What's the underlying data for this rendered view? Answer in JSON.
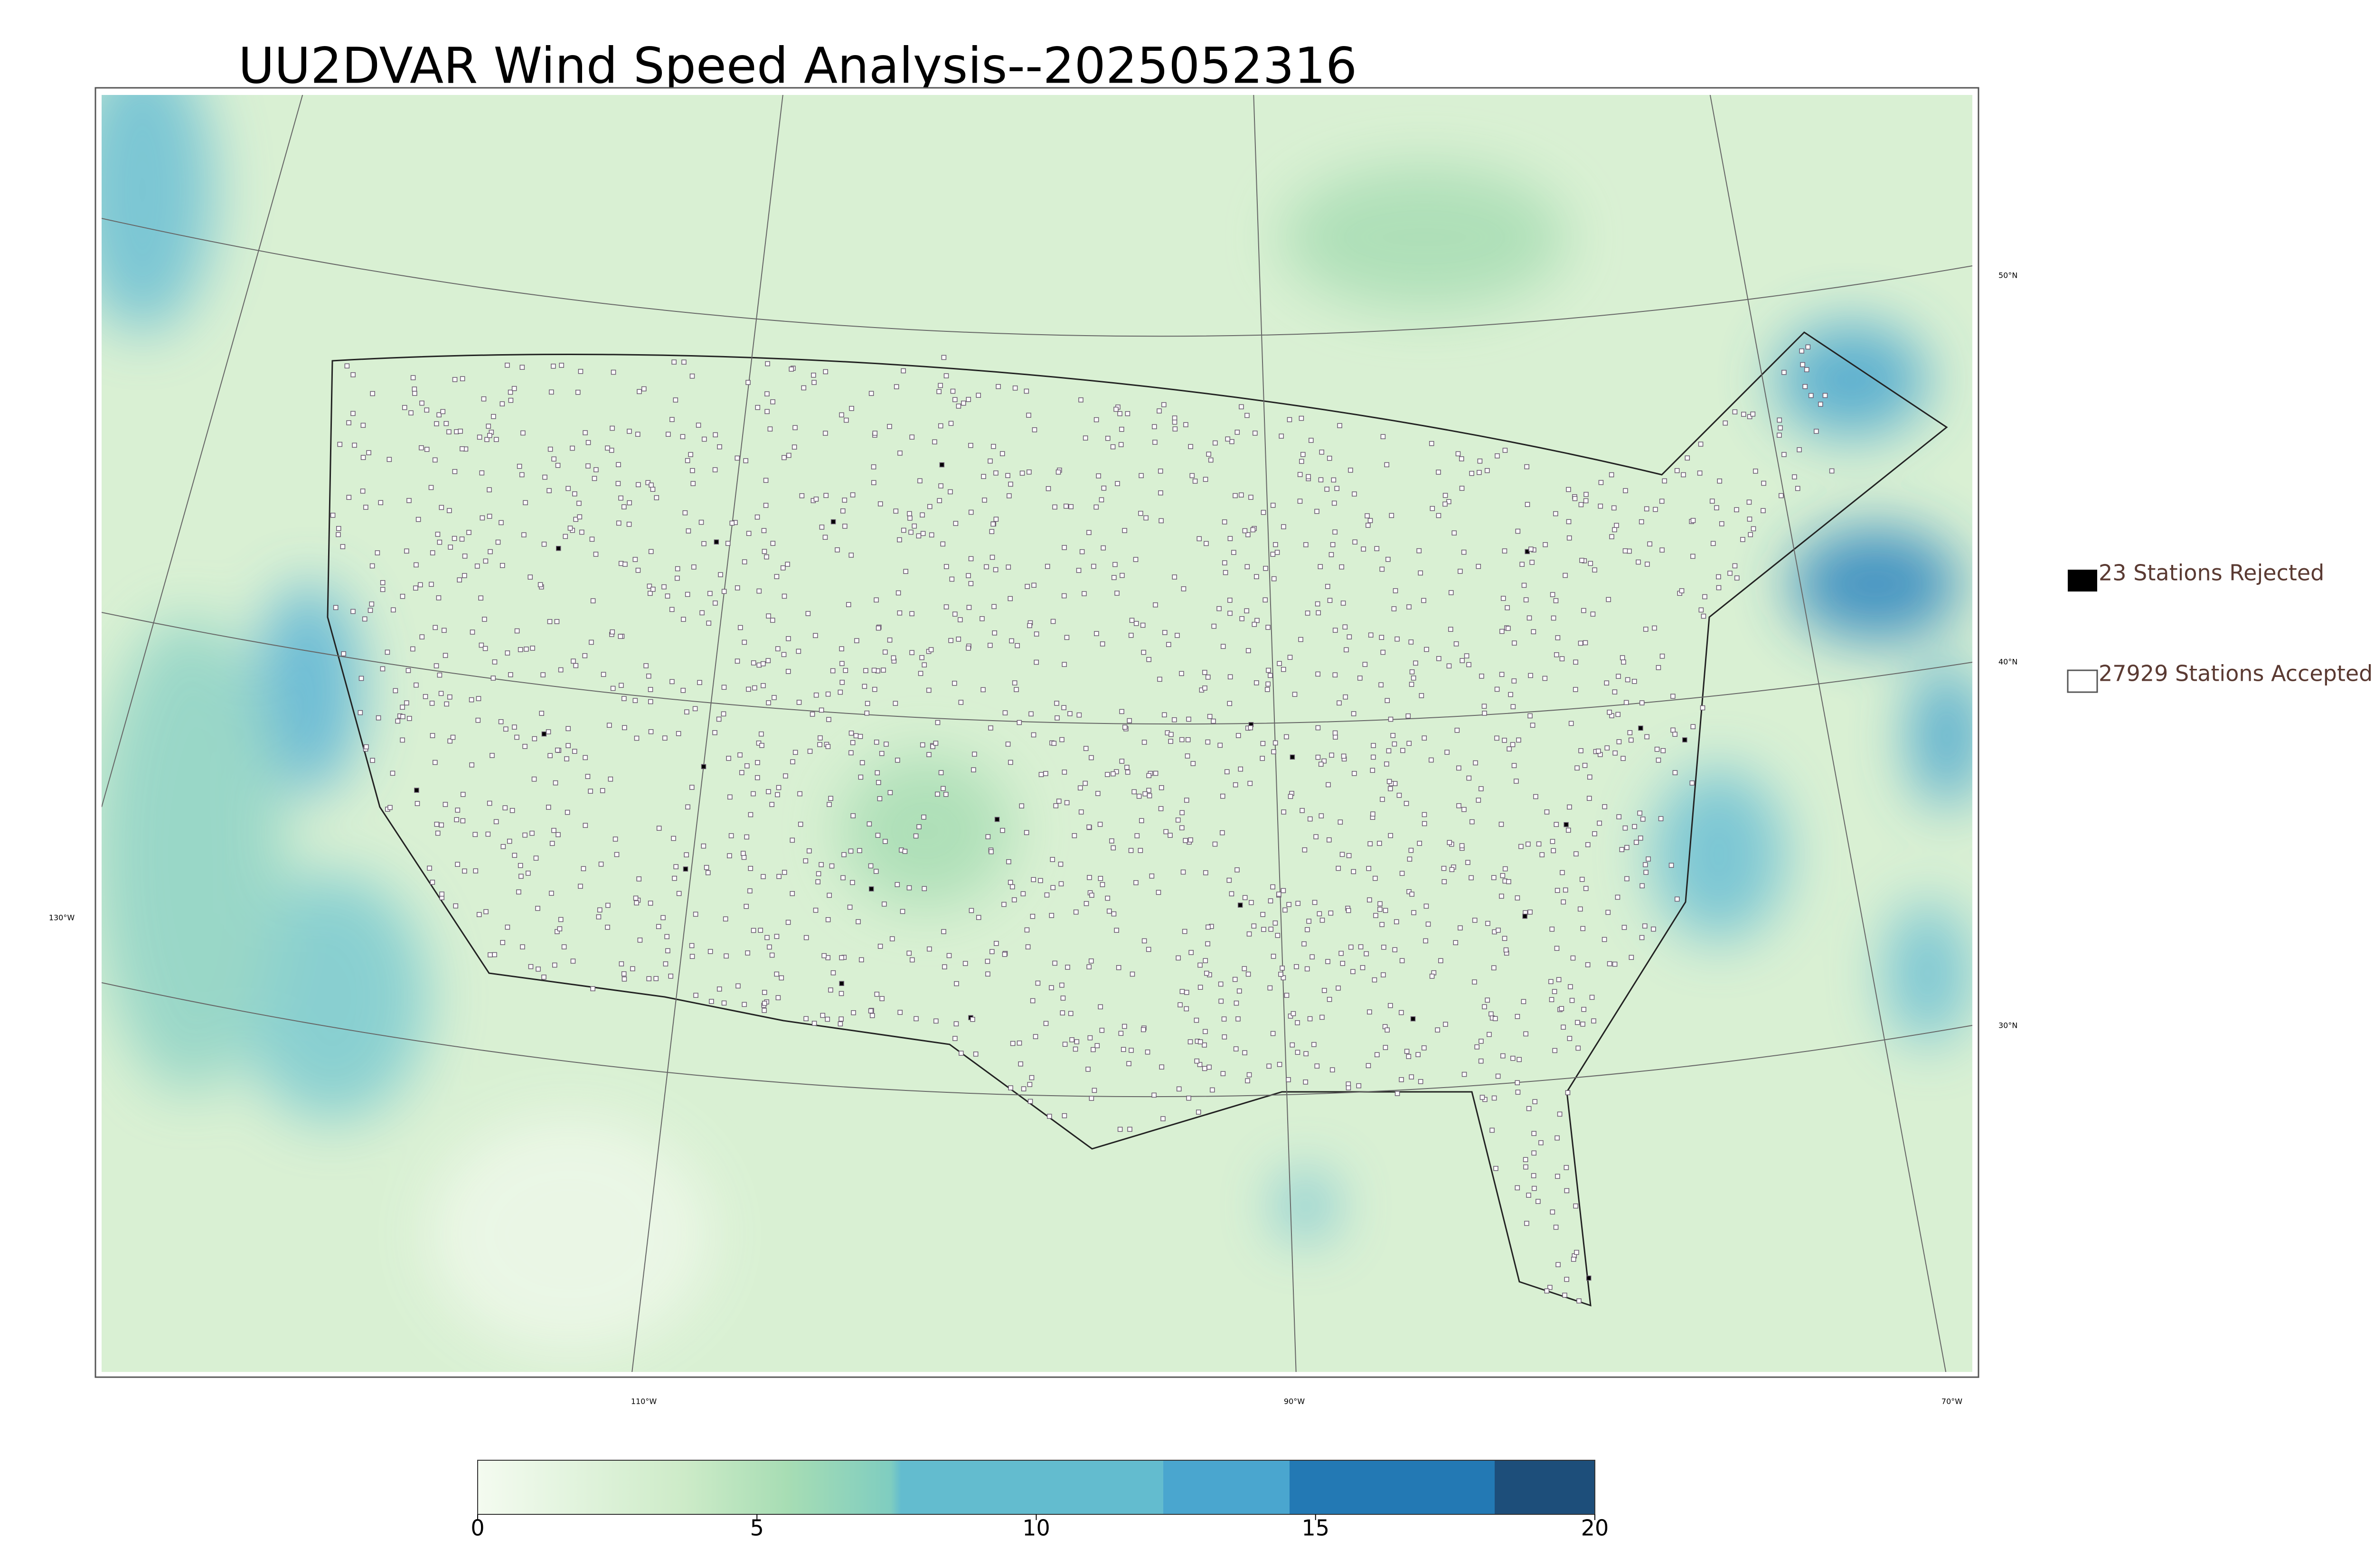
{
  "title": "UU2DVAR Wind Speed Analysis--2025052316",
  "legend": {
    "rejected": "23 Stations Rejected",
    "accepted": "27929 Stations Accepted"
  },
  "graticule": {
    "lat_labels": [
      "50°N",
      "40°N",
      "30°N"
    ],
    "lon_labels": [
      "130°W",
      "110°W",
      "90°W",
      "70°W"
    ]
  },
  "colorbar": {
    "range": [
      0,
      20
    ],
    "ticks": [
      0,
      5,
      10,
      15,
      20
    ]
  }
}
